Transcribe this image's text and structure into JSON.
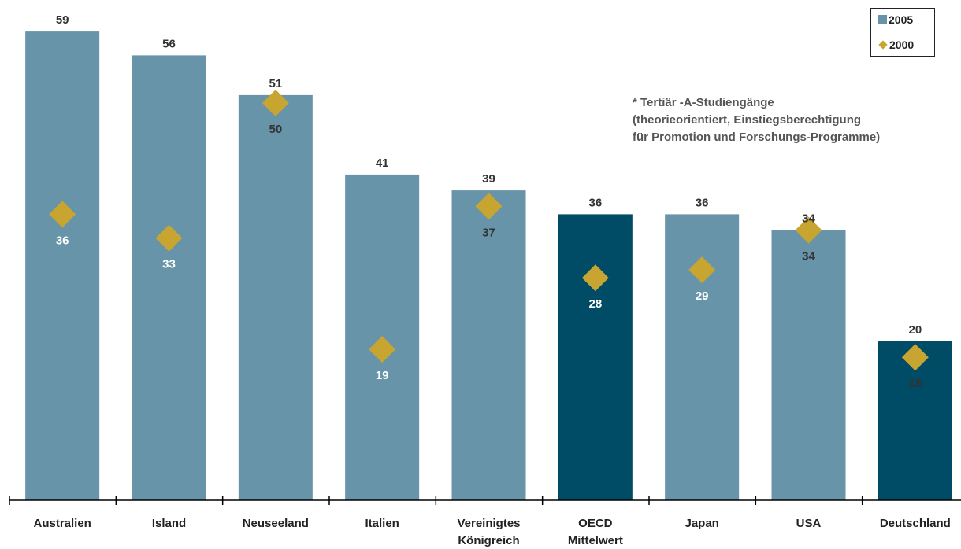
{
  "chart_data": {
    "type": "bar",
    "categories": [
      [
        "Australien"
      ],
      [
        "Island"
      ],
      [
        "Neuseeland"
      ],
      [
        "Italien"
      ],
      [
        "Vereinigtes",
        "Königreich"
      ],
      [
        "OECD",
        "Mittelwert"
      ],
      [
        "Japan"
      ],
      [
        "USA"
      ],
      [
        "Deutschland"
      ]
    ],
    "series": [
      {
        "name": "2005",
        "type": "bar",
        "values": [
          59,
          56,
          51,
          41,
          39,
          36,
          36,
          34,
          20
        ]
      },
      {
        "name": "2000",
        "type": "marker",
        "values": [
          36,
          33,
          50,
          19,
          37,
          28,
          29,
          34,
          18
        ]
      }
    ],
    "highlight_categories": [
      5,
      8
    ],
    "ylim": [
      0,
      62
    ],
    "grid": false,
    "legend_position": "top-right",
    "colors": {
      "bar": "#6794a8",
      "bar_highlight": "#004b66",
      "marker": "#c8a531"
    }
  },
  "note": {
    "lines": [
      "* Tertiär -A-Studiengänge",
      "(theorieorientiert, Einstiegsberechtigung",
      "für Promotion und Forschungs-Programme)"
    ]
  },
  "legend": {
    "items": [
      {
        "label": "2005",
        "shape": "square"
      },
      {
        "label": "2000",
        "shape": "diamond"
      }
    ]
  }
}
